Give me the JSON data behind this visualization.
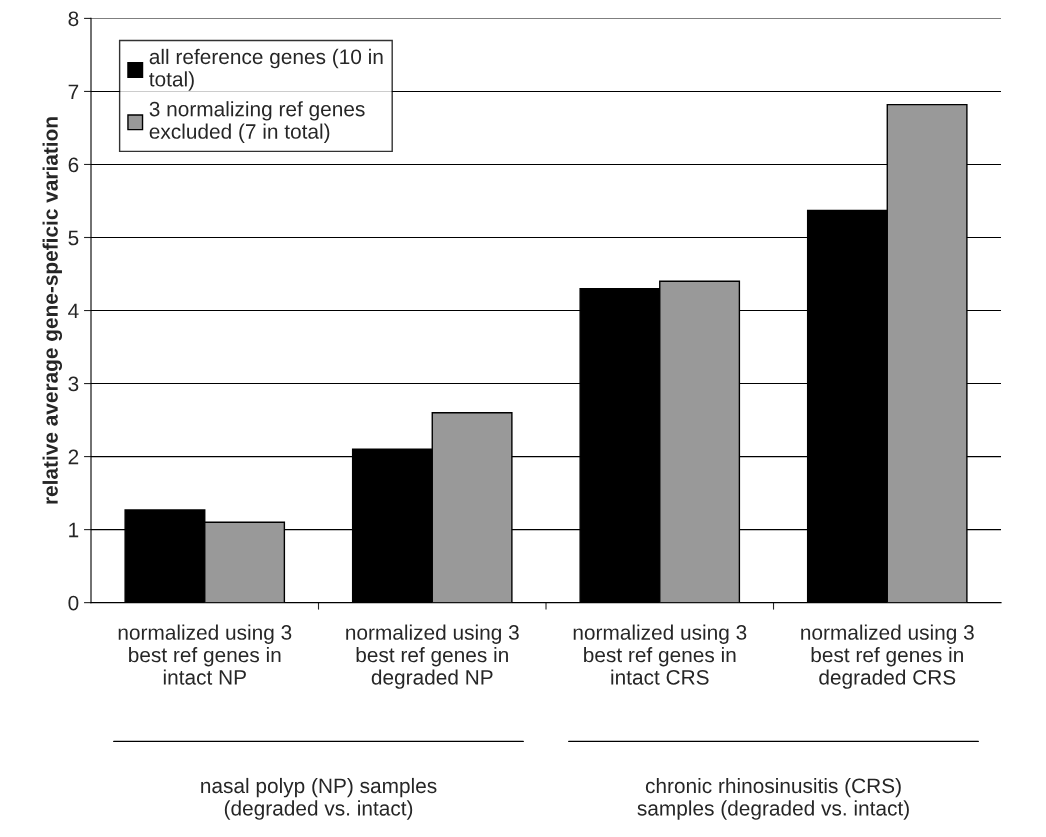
{
  "chart_data": {
    "type": "bar",
    "ylabel": "relative average gene-speficic variation",
    "categories": [
      "normalized using 3\nbest ref genes in\nintact NP",
      "normalized using 3\nbest ref genes in\ndegraded NP",
      "normalized using 3\nbest ref genes in\nintact CRS",
      "normalized using 3\nbest ref genes in\ndegraded CRS"
    ],
    "series": [
      {
        "name": "all reference genes (10 in\ntotal)",
        "color": "#000000",
        "values": [
          1.27,
          2.1,
          4.3,
          5.37
        ]
      },
      {
        "name": "3 normalizing ref genes\nexcluded (7 in total)",
        "color": "#999999",
        "values": [
          1.1,
          2.6,
          4.4,
          6.82
        ]
      }
    ],
    "ylim": [
      0,
      8
    ],
    "yticks": [
      0,
      1,
      2,
      3,
      4,
      5,
      6,
      7,
      8
    ],
    "grid": "y",
    "legend": "top left",
    "annotations": [
      "nasal polyp (NP) samples\n(degraded vs. intact)",
      "chronic rhinosinusitis (CRS)\nsamples (degraded vs. intact)"
    ]
  }
}
